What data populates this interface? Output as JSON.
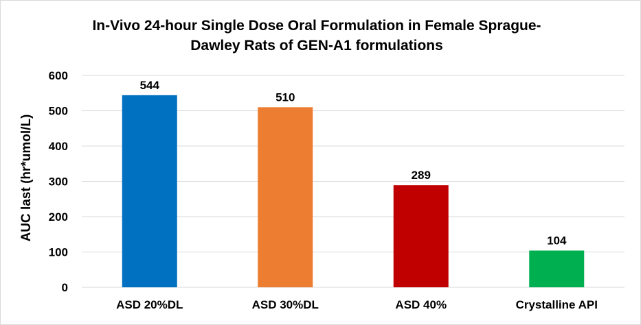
{
  "chart_data": {
    "type": "bar",
    "title": "In-Vivo 24-hour Single Dose Oral Formulation in Female Sprague-Dawley Rats of GEN-A1 formulations",
    "title_lines": [
      "In-Vivo 24-hour Single Dose Oral Formulation in Female Sprague-",
      "Dawley Rats of  GEN-A1 formulations"
    ],
    "xlabel": "",
    "ylabel": "AUC last (hr*umol/L)",
    "categories": [
      "ASD 20%DL",
      "ASD 30%DL",
      "ASD 40%",
      "Crystalline API"
    ],
    "values": [
      544,
      510,
      289,
      104
    ],
    "data_labels": [
      "544",
      "510",
      "289",
      "104"
    ],
    "colors": [
      "#0070C0",
      "#ED7D31",
      "#C00000",
      "#00B050"
    ],
    "ylim": [
      0,
      600
    ],
    "yticks": [
      0,
      100,
      200,
      300,
      400,
      500,
      600
    ],
    "grid": true,
    "legend": "none"
  }
}
